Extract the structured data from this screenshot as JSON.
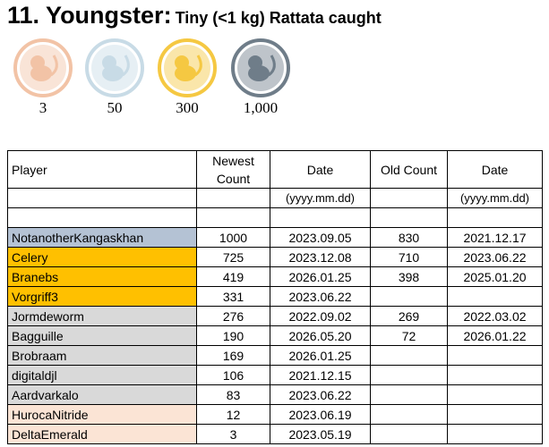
{
  "header": {
    "title": "11. Youngster:",
    "subtitle": "Tiny (<1 kg) Rattata caught"
  },
  "medals": [
    {
      "label": "3",
      "color": "#f2c3a6"
    },
    {
      "label": "50",
      "color": "#c8dbe6"
    },
    {
      "label": "300",
      "color": "#f5c842"
    },
    {
      "label": "1,000",
      "color": "#6f7d89"
    }
  ],
  "table": {
    "columns": [
      "Player",
      "Newest Count",
      "Date",
      "Old Count",
      "Date"
    ],
    "units": [
      "(yyyy.mm.dd)",
      "(yyyy.mm.dd)"
    ],
    "rows": [
      {
        "player": "NotanotherKangaskhan",
        "newest": 1000,
        "date": "2023.09.05",
        "old": 830,
        "old_date": "2021.12.17",
        "color": "#b4c2d4"
      },
      {
        "player": "Celery",
        "newest": 725,
        "date": "2023.12.08",
        "old": 710,
        "old_date": "2023.06.22",
        "color": "#ffc000"
      },
      {
        "player": "Branebs",
        "newest": 419,
        "date": "2026.01.25",
        "old": 398,
        "old_date": "2025.01.20",
        "color": "#ffc000"
      },
      {
        "player": "Vorgriff3",
        "newest": 331,
        "date": "2023.06.22",
        "old": null,
        "old_date": null,
        "color": "#ffc000"
      },
      {
        "player": "Jormdeworm",
        "newest": 276,
        "date": "2022.09.02",
        "old": 269,
        "old_date": "2022.03.02",
        "color": "#d9d9d9"
      },
      {
        "player": "Bagguille",
        "newest": 190,
        "date": "2026.05.20",
        "old": 72,
        "old_date": "2026.01.22",
        "color": "#d9d9d9"
      },
      {
        "player": "Brobraam",
        "newest": 169,
        "date": "2026.01.25",
        "old": null,
        "old_date": null,
        "color": "#d9d9d9"
      },
      {
        "player": "digitaldjl",
        "newest": 106,
        "date": "2021.12.15",
        "old": null,
        "old_date": null,
        "color": "#d9d9d9"
      },
      {
        "player": "Aardvarkalo",
        "newest": 83,
        "date": "2023.06.22",
        "old": null,
        "old_date": null,
        "color": "#d9d9d9"
      },
      {
        "player": "HurocaNitride",
        "newest": 12,
        "date": "2023.06.19",
        "old": null,
        "old_date": null,
        "color": "#fbe4d5"
      },
      {
        "player": "DeltaEmerald",
        "newest": 3,
        "date": "2023.05.19",
        "old": null,
        "old_date": null,
        "color": "#fbe4d5"
      }
    ]
  }
}
